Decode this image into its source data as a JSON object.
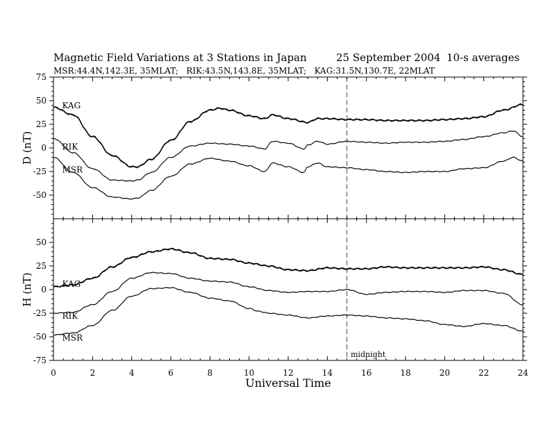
{
  "title": "Magnetic Field Variations at 3 Stations in Japan",
  "date": "25 September 2004",
  "averaging": "10-s averages",
  "subtitle": "MSR:44.4N,142.3E, 35MLAT;   RIK:43.5N,143.8E, 35MLAT;   KAG:31.5N,130.7E, 22MLAT",
  "colors": {
    "trace": "#000000",
    "axis": "#000000",
    "marker": "#999999",
    "background": "#ffffff"
  },
  "chart_data": {
    "type": "line",
    "xlabel": "Universal Time",
    "xlim": [
      0,
      24
    ],
    "x_ticks": [
      0,
      2,
      4,
      6,
      8,
      10,
      12,
      14,
      16,
      18,
      20,
      22,
      24
    ],
    "marker": {
      "x": 15,
      "label": "midnight",
      "style": "dashed"
    },
    "panels": [
      {
        "ylabel": "D (nT)",
        "ylim": [
          -75,
          75
        ],
        "y_ticks": [
          75,
          50,
          25,
          0,
          -25,
          -50
        ],
        "series": [
          {
            "name": "KAG",
            "label_at": [
              0.3,
              45
            ],
            "x": [
              0,
              1,
              2,
              3,
              4,
              4.3,
              5,
              6,
              7,
              8,
              8.5,
              9,
              10,
              10.8,
              11.2,
              12,
              13,
              13.5,
              14,
              15,
              16,
              17,
              18,
              19,
              20,
              21,
              22,
              23,
              24
            ],
            "values": [
              43,
              35,
              12,
              -8,
              -20,
              -20,
              -12,
              8,
              28,
              40,
              42,
              40,
              34,
              31,
              35,
              31,
              27,
              31,
              31,
              30,
              30,
              29,
              29,
              29,
              30,
              31,
              33,
              40,
              46
            ]
          },
          {
            "name": "RIK",
            "label_at": [
              0.3,
              1
            ],
            "x": [
              0,
              1,
              2,
              3,
              4,
              4.3,
              5,
              6,
              7,
              8,
              9,
              10,
              10.8,
              11.2,
              12,
              12.8,
              13,
              13.5,
              14,
              15,
              16,
              17,
              18,
              19,
              20,
              21,
              22,
              23,
              23.5,
              24
            ],
            "values": [
              10,
              -5,
              -22,
              -34,
              -35,
              -34,
              -26,
              -10,
              2,
              5,
              4,
              2,
              -1,
              7,
              5,
              -1,
              3,
              7,
              4,
              7,
              6,
              5,
              6,
              6,
              7,
              9,
              12,
              16,
              18,
              12
            ]
          },
          {
            "name": "MSR",
            "label_at": [
              0.3,
              -23
            ],
            "x": [
              0,
              1,
              2,
              3,
              4,
              4.3,
              5,
              6,
              7,
              8,
              9,
              10,
              10.8,
              11.2,
              12,
              12.8,
              13,
              13.5,
              14,
              15,
              16,
              17,
              18,
              19,
              20,
              21,
              22,
              23,
              23.5,
              24
            ],
            "values": [
              -10,
              -26,
              -42,
              -52,
              -54,
              -53,
              -45,
              -30,
              -17,
              -11,
              -14,
              -19,
              -25,
              -16,
              -20,
              -26,
              -20,
              -16,
              -20,
              -21,
              -23,
              -25,
              -26,
              -25,
              -25,
              -22,
              -21,
              -14,
              -10,
              -14
            ]
          }
        ]
      },
      {
        "ylabel": "H (nT)",
        "ylim": [
          -75,
          75
        ],
        "y_ticks": [
          50,
          25,
          0,
          -25,
          -50,
          -75
        ],
        "series": [
          {
            "name": "KAG",
            "label_at": [
              0.3,
              6
            ],
            "x": [
              0,
              1,
              2,
              3,
              4,
              5,
              6,
              7,
              8,
              9,
              10,
              11,
              12,
              13,
              14,
              15,
              16,
              17,
              18,
              19,
              20,
              21,
              22,
              23,
              24
            ],
            "values": [
              3,
              5,
              12,
              24,
              34,
              40,
              43,
              39,
              33,
              32,
              28,
              25,
              21,
              20,
              23,
              22,
              22,
              24,
              23,
              23,
              23,
              23,
              24,
              21,
              16
            ]
          },
          {
            "name": "RIK",
            "label_at": [
              0.3,
              -28
            ],
            "x": [
              0,
              1,
              2,
              3,
              4,
              5,
              6,
              7,
              8,
              9,
              10,
              11,
              12,
              13,
              14,
              15,
              16,
              17,
              18,
              19,
              20,
              21,
              22,
              23,
              24
            ],
            "values": [
              -25,
              -24,
              -16,
              -2,
              12,
              18,
              17,
              12,
              9,
              8,
              3,
              -1,
              -3,
              -2,
              -2,
              0,
              -5,
              -3,
              -2,
              -2,
              -3,
              -1,
              -1,
              -4,
              -16
            ]
          },
          {
            "name": "MSR",
            "label_at": [
              0.3,
              -51
            ],
            "x": [
              0,
              1,
              2,
              3,
              4,
              5,
              6,
              7,
              8,
              9,
              10,
              10.5,
              11,
              12,
              13,
              14,
              15,
              16,
              17,
              18,
              19,
              20,
              21,
              22,
              23,
              24
            ],
            "values": [
              -48,
              -46,
              -38,
              -22,
              -7,
              1,
              2,
              -3,
              -9,
              -12,
              -20,
              -23,
              -25,
              -27,
              -30,
              -28,
              -27,
              -28,
              -30,
              -31,
              -33,
              -37,
              -39,
              -36,
              -38,
              -44
            ]
          }
        ]
      }
    ]
  }
}
